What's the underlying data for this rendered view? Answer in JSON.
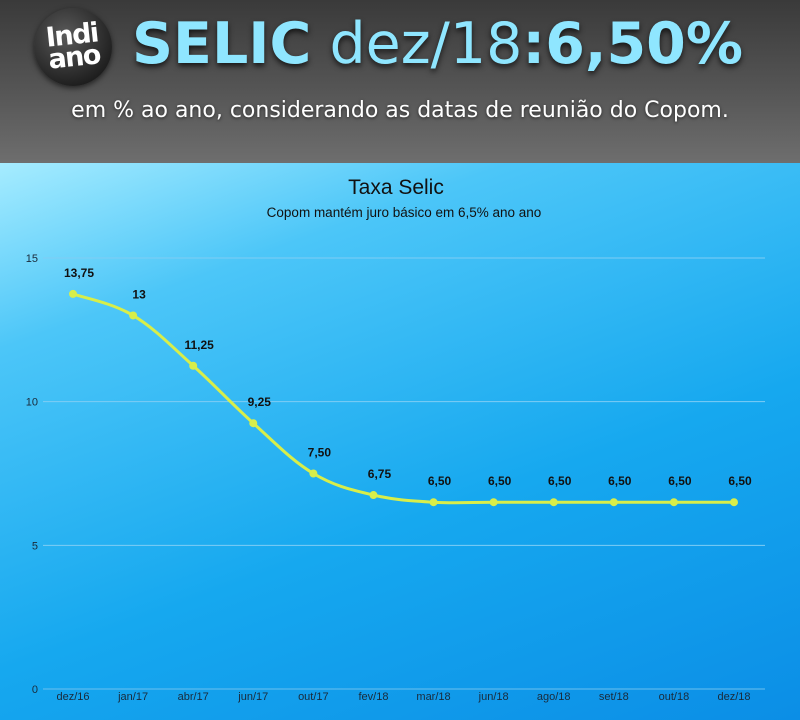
{
  "header": {
    "logo_line1": "Indi",
    "logo_line2": "ano",
    "headline_strong": "SELIC",
    "headline_light": "dez/18",
    "headline_colon": ":",
    "headline_value": "6,50%",
    "subtitle": "em % ao ano, considerando as datas de reunião do Copom."
  },
  "colors": {
    "line": "#d8ee4a",
    "marker": "#d8ee4a",
    "headline": "#8fe6ff"
  },
  "chart_data": {
    "type": "line",
    "title": "Taxa Selic",
    "subtitle": "Copom mantém juro básico em 6,5% ano ano",
    "xlabel": "",
    "ylabel": "",
    "ylim": [
      0,
      15
    ],
    "yticks": [
      0,
      5,
      10,
      15
    ],
    "grid": true,
    "categories": [
      "dez/16",
      "jan/17",
      "abr/17",
      "jun/17",
      "out/17",
      "fev/18",
      "mar/18",
      "jun/18",
      "ago/18",
      "set/18",
      "out/18",
      "dez/18"
    ],
    "series": [
      {
        "values": [
          13.75,
          13,
          11.25,
          9.25,
          7.5,
          6.75,
          6.5,
          6.5,
          6.5,
          6.5,
          6.5,
          6.5
        ],
        "labels": [
          "13,75",
          "13",
          "11,25",
          "9,25",
          "7,50",
          "6,75",
          "6,50",
          "6,50",
          "6,50",
          "6,50",
          "6,50",
          "6,50"
        ]
      }
    ]
  }
}
